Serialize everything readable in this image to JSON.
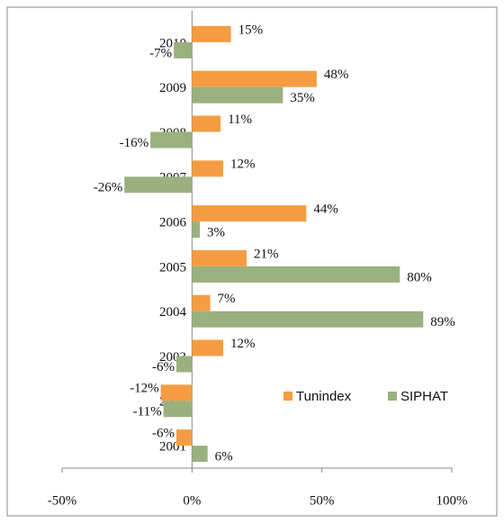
{
  "chart_data": {
    "type": "bar",
    "orientation": "horizontal",
    "categories": [
      "2010",
      "2009",
      "2008",
      "2007",
      "2006",
      "2005",
      "2004",
      "2003",
      "2002",
      "2001"
    ],
    "series": [
      {
        "name": "Tunindex",
        "color": "#f59c42",
        "values": [
          15,
          48,
          11,
          12,
          44,
          21,
          7,
          12,
          -12,
          -6
        ],
        "value_labels": [
          "15%",
          "48%",
          "11%",
          "12%",
          "44%",
          "21%",
          "7%",
          "12%",
          "-12%",
          "-6%"
        ]
      },
      {
        "name": "SIPHAT",
        "color": "#9bb07f",
        "values": [
          -7,
          35,
          -16,
          -26,
          3,
          80,
          89,
          -6,
          -11,
          6
        ],
        "value_labels": [
          "-7%",
          "35%",
          "-16%",
          "-26%",
          "3%",
          "80%",
          "89%",
          "-6%",
          "-11%",
          "6%"
        ]
      }
    ],
    "xlim": [
      -50,
      100
    ],
    "xticks": [
      {
        "value": -50,
        "label": "-50%"
      },
      {
        "value": 0,
        "label": "0%"
      },
      {
        "value": 50,
        "label": "50%"
      },
      {
        "value": 100,
        "label": "100%"
      }
    ],
    "legend": "right"
  }
}
